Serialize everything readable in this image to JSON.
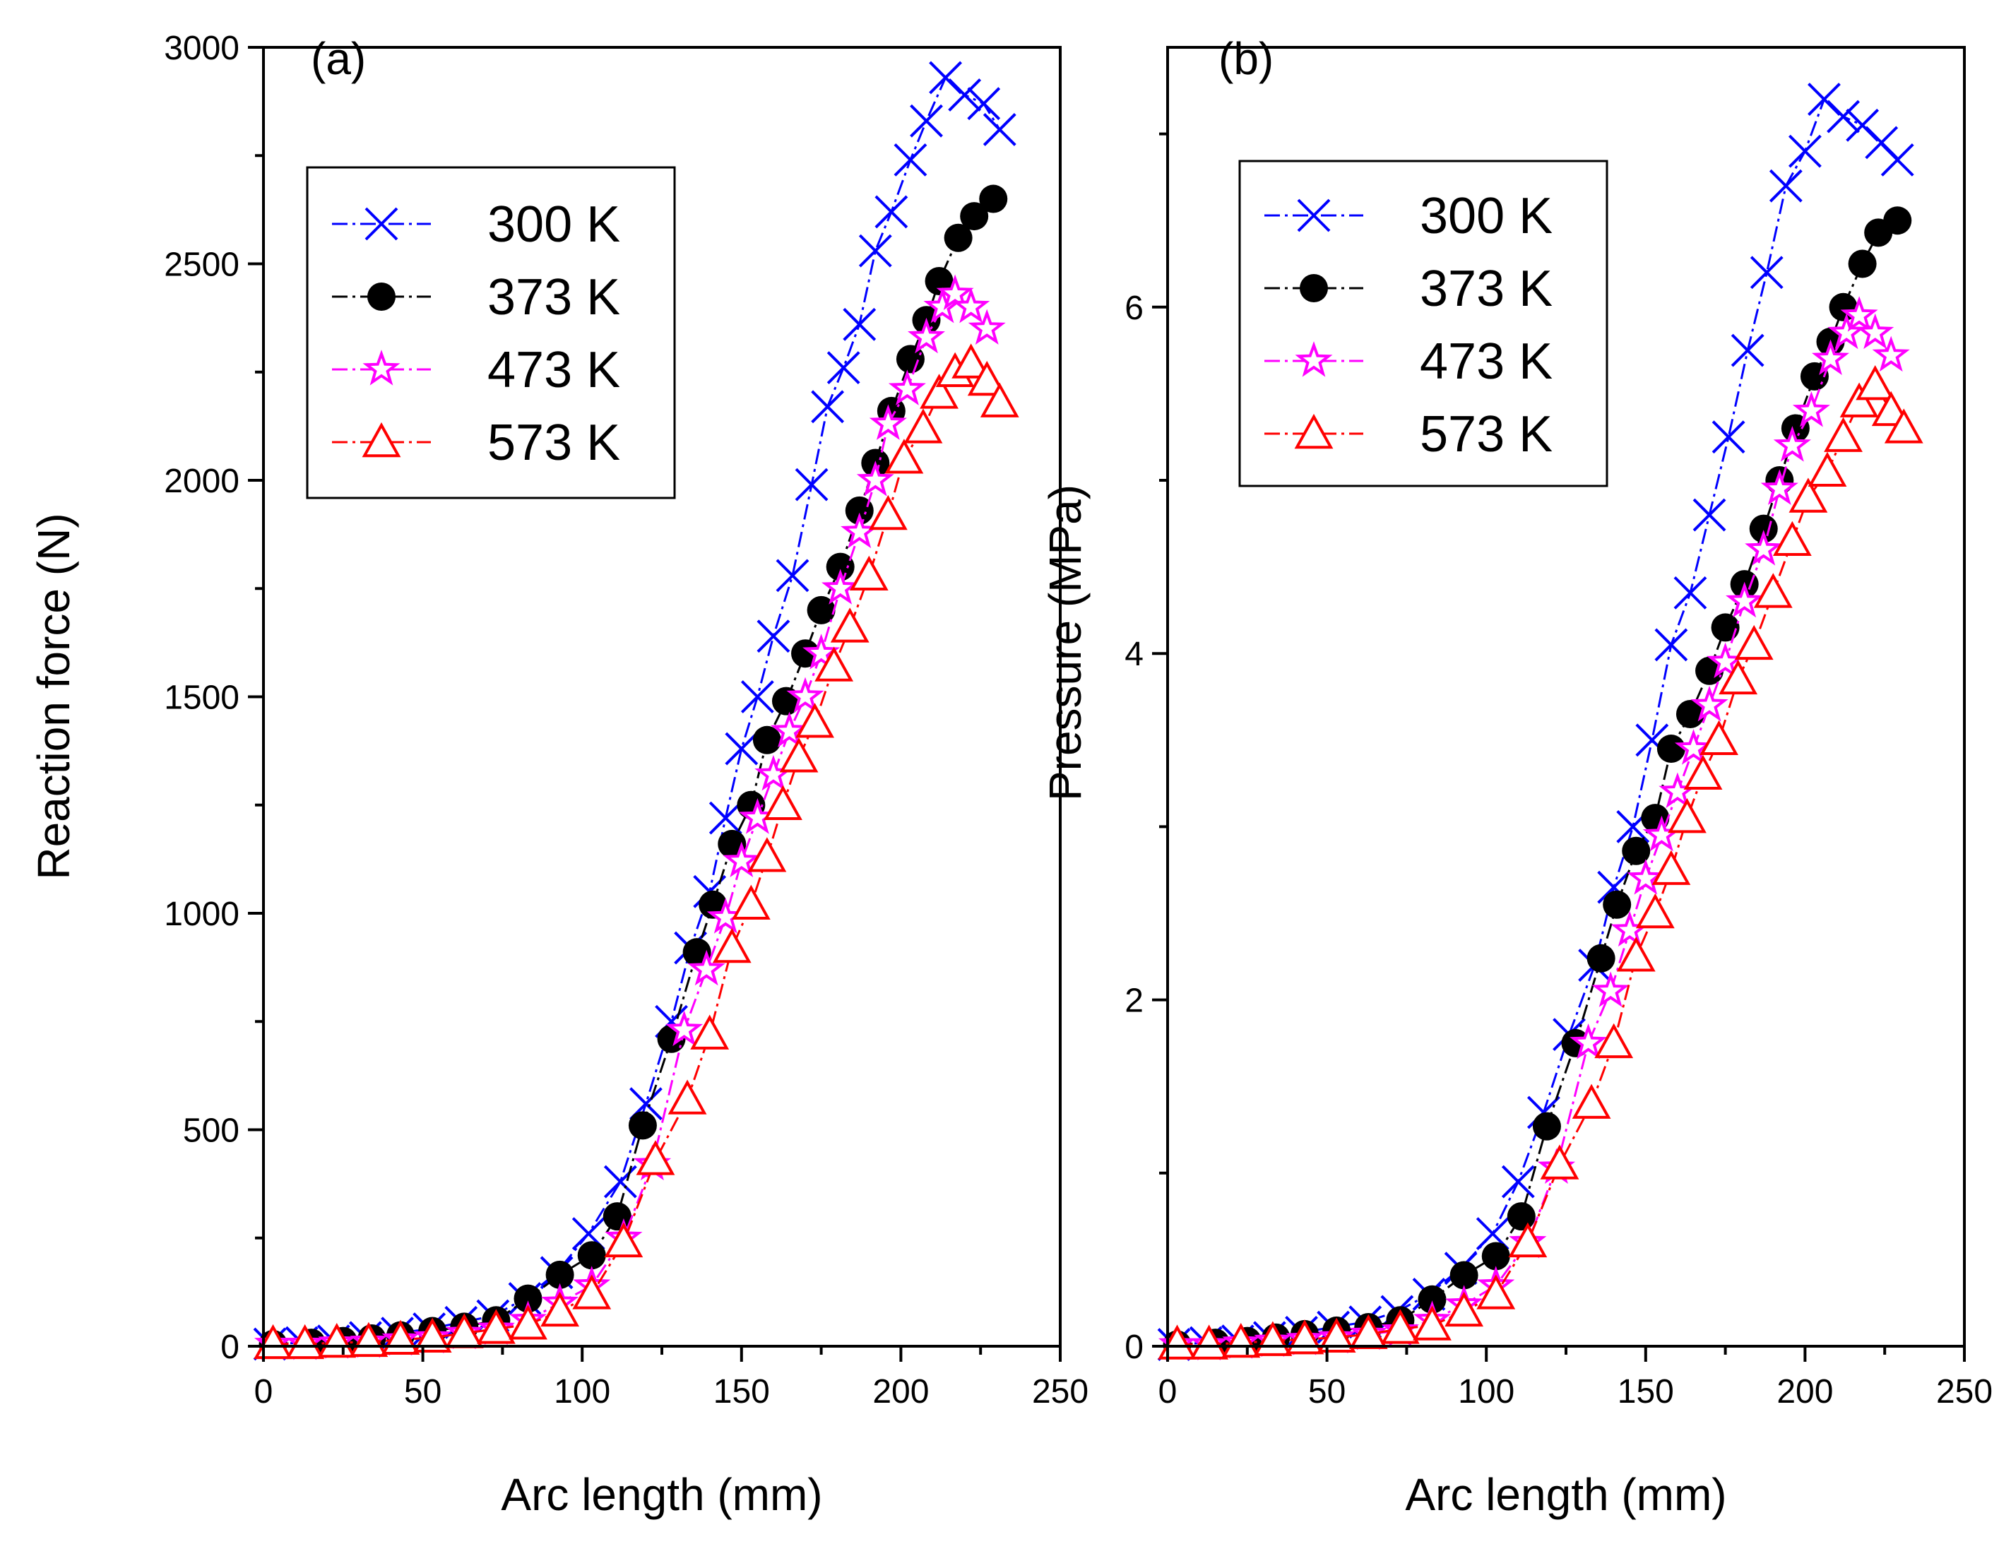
{
  "chart_data": [
    {
      "type": "scatter",
      "panel_label": "(a)",
      "xlabel": "Arc length (mm)",
      "ylabel": "Reaction force (N)",
      "xlim": [
        0,
        250
      ],
      "ylim": [
        0,
        3000
      ],
      "x_ticks": [
        "0",
        "50",
        "100",
        "150",
        "200",
        "250"
      ],
      "y_ticks": [
        "0",
        "500",
        "1000",
        "1500",
        "2000",
        "2500",
        "3000"
      ],
      "legend_position": "upper-left",
      "series": [
        {
          "name": "300 K",
          "color": "#0000ff",
          "marker": "x",
          "dash": "dash-dot",
          "x": [
            2,
            12,
            22,
            32,
            42,
            52,
            62,
            72,
            82,
            92,
            102,
            112,
            120,
            128,
            134,
            140,
            145,
            150,
            155,
            160,
            166,
            172,
            177,
            182,
            187,
            192,
            197,
            203,
            208,
            214,
            220,
            226,
            231
          ],
          "y": [
            5,
            8,
            12,
            20,
            30,
            40,
            55,
            70,
            110,
            170,
            260,
            380,
            560,
            750,
            920,
            1050,
            1220,
            1380,
            1500,
            1640,
            1780,
            1990,
            2170,
            2260,
            2360,
            2530,
            2620,
            2740,
            2830,
            2930,
            2890,
            2870,
            2810
          ]
        },
        {
          "name": "373 K",
          "color": "#000000",
          "marker": "circle",
          "dash": "dash-dot",
          "x": [
            3,
            15,
            25,
            34,
            43,
            53,
            63,
            73,
            83,
            93,
            103,
            111,
            119,
            128,
            136,
            141,
            147,
            153,
            158,
            164,
            170,
            175,
            181,
            187,
            192,
            197,
            203,
            208,
            212,
            218,
            223,
            229
          ],
          "y": [
            5,
            8,
            12,
            18,
            25,
            35,
            45,
            60,
            110,
            165,
            210,
            300,
            510,
            710,
            910,
            1020,
            1160,
            1250,
            1400,
            1490,
            1600,
            1700,
            1800,
            1930,
            2040,
            2160,
            2280,
            2370,
            2460,
            2560,
            2610,
            2650
          ]
        },
        {
          "name": "473 K",
          "color": "#ff00ff",
          "marker": "star",
          "dash": "dash-dot",
          "x": [
            3,
            13,
            23,
            33,
            43,
            53,
            63,
            73,
            83,
            93,
            103,
            113,
            122,
            132,
            139,
            145,
            150,
            155,
            160,
            165,
            170,
            175,
            181,
            187,
            192,
            196,
            202,
            208,
            213,
            217,
            222,
            227
          ],
          "y": [
            5,
            5,
            8,
            10,
            15,
            20,
            30,
            40,
            60,
            100,
            140,
            250,
            420,
            730,
            870,
            990,
            1120,
            1220,
            1320,
            1420,
            1500,
            1600,
            1750,
            1880,
            2000,
            2130,
            2210,
            2330,
            2400,
            2430,
            2400,
            2350
          ]
        },
        {
          "name": "573 K",
          "color": "#ff0000",
          "marker": "triangle",
          "dash": "dash-dot",
          "x": [
            3,
            13,
            23,
            33,
            43,
            53,
            63,
            73,
            83,
            93,
            103,
            113,
            123,
            133,
            140,
            147,
            153,
            158,
            163,
            168,
            173,
            179,
            184,
            190,
            196,
            201,
            207,
            212,
            217,
            222,
            227,
            231
          ],
          "y": [
            5,
            5,
            8,
            10,
            15,
            20,
            30,
            40,
            50,
            80,
            120,
            240,
            430,
            570,
            720,
            920,
            1020,
            1130,
            1250,
            1360,
            1440,
            1570,
            1660,
            1780,
            1920,
            2050,
            2120,
            2200,
            2250,
            2270,
            2230,
            2180
          ]
        }
      ]
    },
    {
      "type": "scatter",
      "panel_label": "(b)",
      "xlabel": "Arc length (mm)",
      "ylabel": "Pressure  (MPa)",
      "xlim": [
        0,
        250
      ],
      "ylim": [
        0,
        7.5
      ],
      "x_ticks": [
        "0",
        "50",
        "100",
        "150",
        "200",
        "250"
      ],
      "y_ticks": [
        "0",
        "2",
        "4",
        "6"
      ],
      "legend_position": "upper-left",
      "series": [
        {
          "name": "300 K",
          "color": "#0000ff",
          "marker": "x",
          "dash": "dash-dot",
          "x": [
            2,
            12,
            22,
            32,
            42,
            52,
            62,
            72,
            82,
            92,
            102,
            110,
            118,
            126,
            134,
            140,
            146,
            152,
            158,
            164,
            170,
            176,
            182,
            188,
            194,
            200,
            206,
            212,
            218,
            224,
            229
          ],
          "y": [
            0.01,
            0.02,
            0.03,
            0.05,
            0.08,
            0.11,
            0.14,
            0.2,
            0.3,
            0.45,
            0.65,
            0.95,
            1.35,
            1.8,
            2.2,
            2.65,
            3.0,
            3.5,
            4.05,
            4.35,
            4.8,
            5.25,
            5.75,
            6.2,
            6.7,
            6.9,
            7.2,
            7.1,
            7.05,
            6.95,
            6.85
          ]
        },
        {
          "name": "373 K",
          "color": "#000000",
          "marker": "circle",
          "dash": "dash-dot",
          "x": [
            3,
            15,
            25,
            34,
            43,
            53,
            63,
            73,
            83,
            93,
            103,
            111,
            119,
            128,
            136,
            141,
            147,
            153,
            158,
            164,
            170,
            175,
            181,
            187,
            192,
            197,
            203,
            208,
            212,
            218,
            223,
            229
          ],
          "y": [
            0.01,
            0.02,
            0.03,
            0.05,
            0.07,
            0.09,
            0.11,
            0.15,
            0.27,
            0.41,
            0.52,
            0.75,
            1.27,
            1.75,
            2.24,
            2.55,
            2.86,
            3.05,
            3.45,
            3.65,
            3.9,
            4.15,
            4.4,
            4.72,
            5.0,
            5.3,
            5.6,
            5.8,
            6.0,
            6.25,
            6.43,
            6.5
          ]
        },
        {
          "name": "473 K",
          "color": "#ff00ff",
          "marker": "star",
          "dash": "dash-dot",
          "x": [
            3,
            13,
            23,
            33,
            43,
            53,
            63,
            73,
            83,
            93,
            103,
            113,
            122,
            132,
            139,
            145,
            150,
            155,
            160,
            165,
            170,
            175,
            181,
            187,
            192,
            196,
            202,
            208,
            213,
            217,
            222,
            227
          ],
          "y": [
            0.01,
            0.01,
            0.02,
            0.03,
            0.04,
            0.05,
            0.07,
            0.09,
            0.15,
            0.24,
            0.35,
            0.6,
            1.03,
            1.75,
            2.05,
            2.4,
            2.7,
            2.95,
            3.2,
            3.45,
            3.7,
            3.95,
            4.3,
            4.6,
            4.95,
            5.2,
            5.4,
            5.7,
            5.85,
            5.95,
            5.85,
            5.72
          ]
        },
        {
          "name": "573 K",
          "color": "#ff0000",
          "marker": "triangle",
          "dash": "dash-dot",
          "x": [
            3,
            13,
            23,
            33,
            43,
            53,
            63,
            73,
            83,
            93,
            103,
            113,
            123,
            133,
            140,
            147,
            153,
            158,
            163,
            168,
            173,
            179,
            184,
            190,
            196,
            201,
            207,
            212,
            217,
            222,
            227,
            231
          ],
          "y": [
            0.01,
            0.01,
            0.02,
            0.03,
            0.04,
            0.05,
            0.07,
            0.1,
            0.12,
            0.2,
            0.3,
            0.6,
            1.05,
            1.4,
            1.75,
            2.25,
            2.5,
            2.75,
            3.05,
            3.3,
            3.5,
            3.85,
            4.05,
            4.35,
            4.65,
            4.9,
            5.05,
            5.25,
            5.45,
            5.55,
            5.4,
            5.3
          ]
        }
      ]
    }
  ]
}
